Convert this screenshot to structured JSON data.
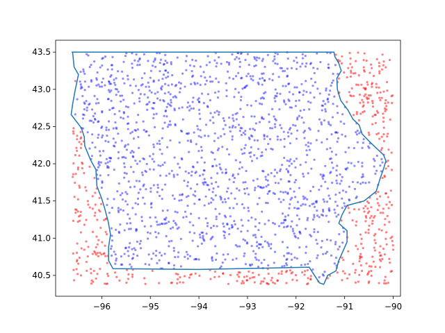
{
  "chart_data": {
    "type": "scatter",
    "title": "",
    "xlabel": "",
    "ylabel": "",
    "xlim": [
      -96.95,
      -89.85
    ],
    "ylim": [
      40.22,
      43.66
    ],
    "grid": false,
    "x_ticks": [
      -96,
      -95,
      -94,
      -93,
      -92,
      -91,
      -90
    ],
    "x_tick_labels": [
      "−96",
      "−95",
      "−94",
      "−93",
      "−92",
      "−91",
      "−90"
    ],
    "y_ticks": [
      40.5,
      41.0,
      41.5,
      42.0,
      42.5,
      43.0,
      43.5
    ],
    "y_tick_labels": [
      "40.5",
      "41.0",
      "41.5",
      "42.0",
      "42.5",
      "43.0",
      "43.5"
    ],
    "series": [
      {
        "role": "points inside boundary",
        "color": "#0000ff",
        "opacity": 0.45,
        "approx_count": 1500,
        "x_range": [
          -96.6,
          -90.2
        ],
        "y_range": [
          40.38,
          43.5
        ]
      },
      {
        "role": "points outside boundary",
        "color": "#ff0000",
        "opacity": 0.5,
        "approx_count": 500,
        "x_range": [
          -96.65,
          -90.15
        ],
        "y_range": [
          40.38,
          43.5
        ]
      },
      {
        "role": "state boundary",
        "color": "#1f77b4",
        "type": "line",
        "points": [
          [
            -96.62,
            43.5
          ],
          [
            -91.22,
            43.5
          ],
          [
            -91.2,
            43.44
          ],
          [
            -91.12,
            43.35
          ],
          [
            -91.07,
            43.25
          ],
          [
            -91.16,
            43.15
          ],
          [
            -91.15,
            43.0
          ],
          [
            -91.08,
            42.85
          ],
          [
            -90.93,
            42.72
          ],
          [
            -90.83,
            42.6
          ],
          [
            -90.7,
            42.52
          ],
          [
            -90.64,
            42.4
          ],
          [
            -90.46,
            42.28
          ],
          [
            -90.2,
            42.12
          ],
          [
            -90.15,
            42.04
          ],
          [
            -90.2,
            41.93
          ],
          [
            -90.27,
            41.8
          ],
          [
            -90.35,
            41.63
          ],
          [
            -90.6,
            41.5
          ],
          [
            -90.95,
            41.44
          ],
          [
            -91.05,
            41.32
          ],
          [
            -91.12,
            41.2
          ],
          [
            -90.95,
            41.1
          ],
          [
            -90.95,
            40.95
          ],
          [
            -91.12,
            40.7
          ],
          [
            -91.18,
            40.56
          ],
          [
            -91.35,
            40.5
          ],
          [
            -91.43,
            40.38
          ],
          [
            -91.52,
            40.4
          ],
          [
            -91.73,
            40.61
          ],
          [
            -94.0,
            40.58
          ],
          [
            -95.77,
            40.59
          ],
          [
            -95.86,
            40.7
          ],
          [
            -95.86,
            40.88
          ],
          [
            -95.82,
            41.05
          ],
          [
            -95.87,
            41.23
          ],
          [
            -95.94,
            41.4
          ],
          [
            -96.0,
            41.53
          ],
          [
            -96.1,
            41.7
          ],
          [
            -96.12,
            41.92
          ],
          [
            -96.23,
            42.05
          ],
          [
            -96.35,
            42.24
          ],
          [
            -96.36,
            42.36
          ],
          [
            -96.42,
            42.48
          ],
          [
            -96.5,
            42.55
          ],
          [
            -96.63,
            42.66
          ],
          [
            -96.6,
            42.8
          ],
          [
            -96.55,
            42.98
          ],
          [
            -96.48,
            43.2
          ],
          [
            -96.57,
            43.3
          ],
          [
            -96.6,
            43.5
          ]
        ]
      }
    ]
  }
}
